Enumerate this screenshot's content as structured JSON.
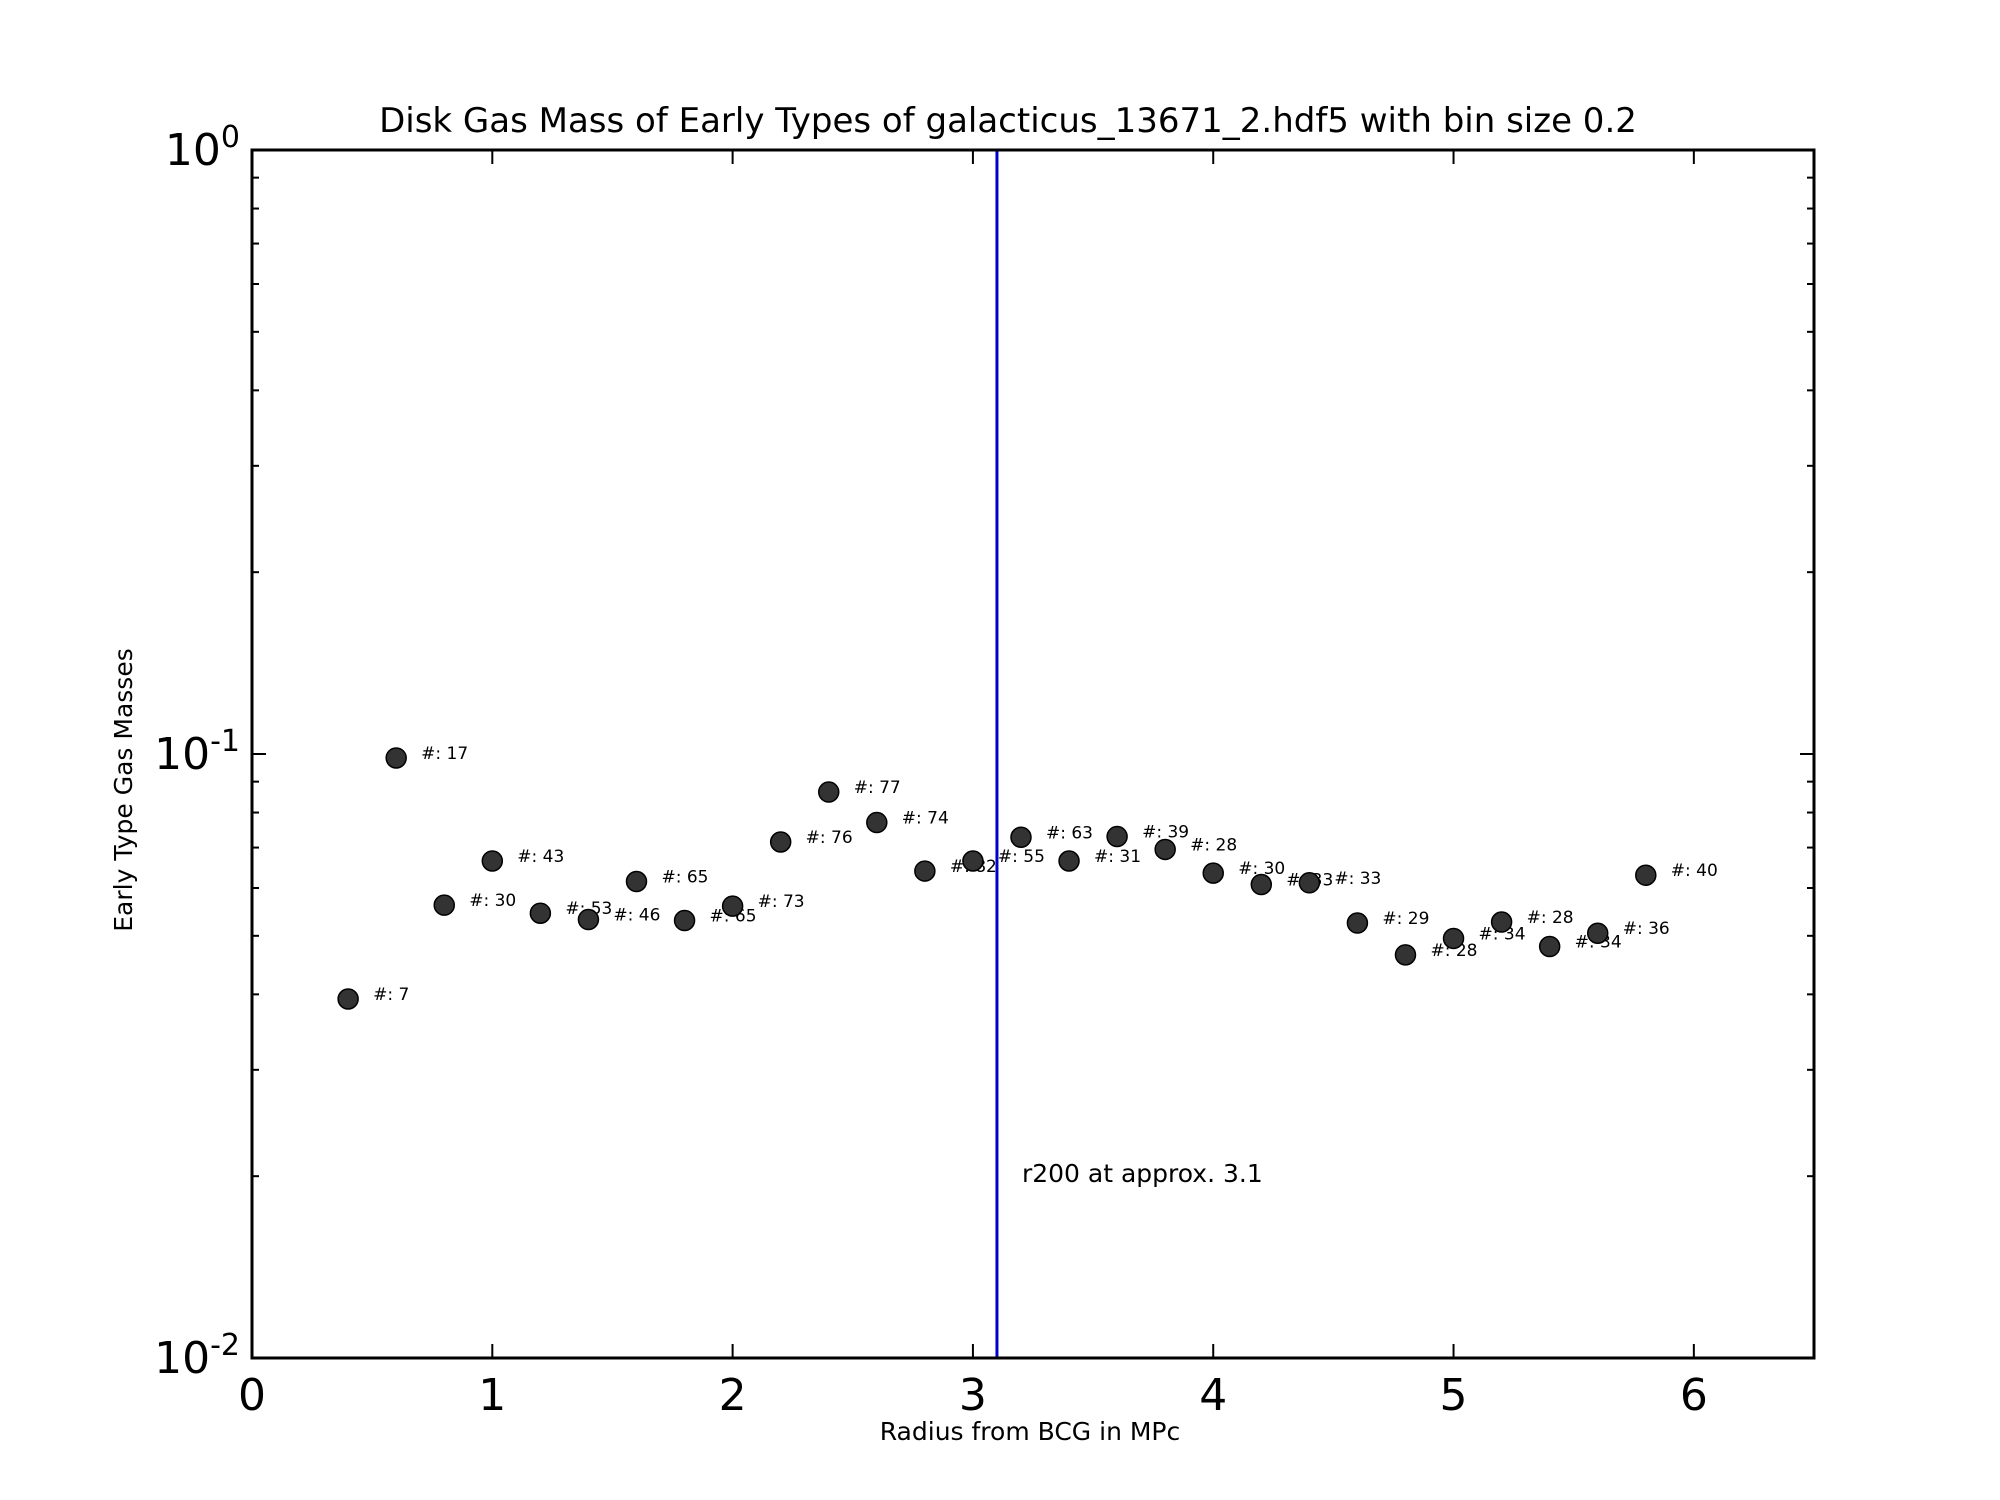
{
  "chart_data": {
    "type": "scatter",
    "title": "Disk Gas Mass of Early Types of galacticus_13671_2.hdf5 with bin size 0.2",
    "xlabel": "Radius from BCG in MPc",
    "ylabel": "Early Type Gas Masses",
    "xlim": [
      0,
      6.5
    ],
    "ylim": [
      0.01,
      1
    ],
    "yscale": "log",
    "xticks": [
      0,
      1,
      2,
      3,
      4,
      5,
      6
    ],
    "yticks": [
      {
        "value": 1,
        "base": "10",
        "exp": "0"
      },
      {
        "value": 0.1,
        "base": "10",
        "exp": "-1"
      },
      {
        "value": 0.01,
        "base": "10",
        "exp": "-2"
      }
    ],
    "grid": false,
    "marker_color": "#333333",
    "vline": {
      "x": 3.1,
      "color": "#0000cc",
      "label": "r200 at approx. 3.1",
      "label_y": 0.02
    },
    "points": [
      {
        "x": 0.4,
        "y": 0.0393,
        "label": "#: 7"
      },
      {
        "x": 0.6,
        "y": 0.0985,
        "label": "#: 17"
      },
      {
        "x": 0.8,
        "y": 0.0562,
        "label": "#: 30"
      },
      {
        "x": 1.0,
        "y": 0.0665,
        "label": "#: 43"
      },
      {
        "x": 1.2,
        "y": 0.0545,
        "label": "#: 53"
      },
      {
        "x": 1.4,
        "y": 0.0532,
        "label": "#: 46"
      },
      {
        "x": 1.6,
        "y": 0.0615,
        "label": "#: 65"
      },
      {
        "x": 1.8,
        "y": 0.053,
        "label": "#: 65"
      },
      {
        "x": 2.0,
        "y": 0.056,
        "label": "#: 73"
      },
      {
        "x": 2.2,
        "y": 0.0715,
        "label": "#: 76"
      },
      {
        "x": 2.4,
        "y": 0.0865,
        "label": "#: 77"
      },
      {
        "x": 2.6,
        "y": 0.077,
        "label": "#: 74"
      },
      {
        "x": 2.8,
        "y": 0.064,
        "label": "#: 82"
      },
      {
        "x": 3.0,
        "y": 0.0665,
        "label": "#: 55"
      },
      {
        "x": 3.2,
        "y": 0.0728,
        "label": "#: 63"
      },
      {
        "x": 3.4,
        "y": 0.0665,
        "label": "#: 31"
      },
      {
        "x": 3.6,
        "y": 0.073,
        "label": "#: 39"
      },
      {
        "x": 3.8,
        "y": 0.0695,
        "label": "#: 28"
      },
      {
        "x": 4.0,
        "y": 0.0635,
        "label": "#: 30"
      },
      {
        "x": 4.2,
        "y": 0.0608,
        "label": "#: 33"
      },
      {
        "x": 4.4,
        "y": 0.0612,
        "label": "#: 33"
      },
      {
        "x": 4.6,
        "y": 0.0525,
        "label": "#: 29"
      },
      {
        "x": 4.8,
        "y": 0.0465,
        "label": "#: 28"
      },
      {
        "x": 5.0,
        "y": 0.0495,
        "label": "#: 34"
      },
      {
        "x": 5.2,
        "y": 0.0527,
        "label": "#: 28"
      },
      {
        "x": 5.4,
        "y": 0.048,
        "label": "#: 34"
      },
      {
        "x": 5.6,
        "y": 0.0505,
        "label": "#: 36"
      },
      {
        "x": 5.8,
        "y": 0.063,
        "label": "#: 40"
      }
    ]
  }
}
